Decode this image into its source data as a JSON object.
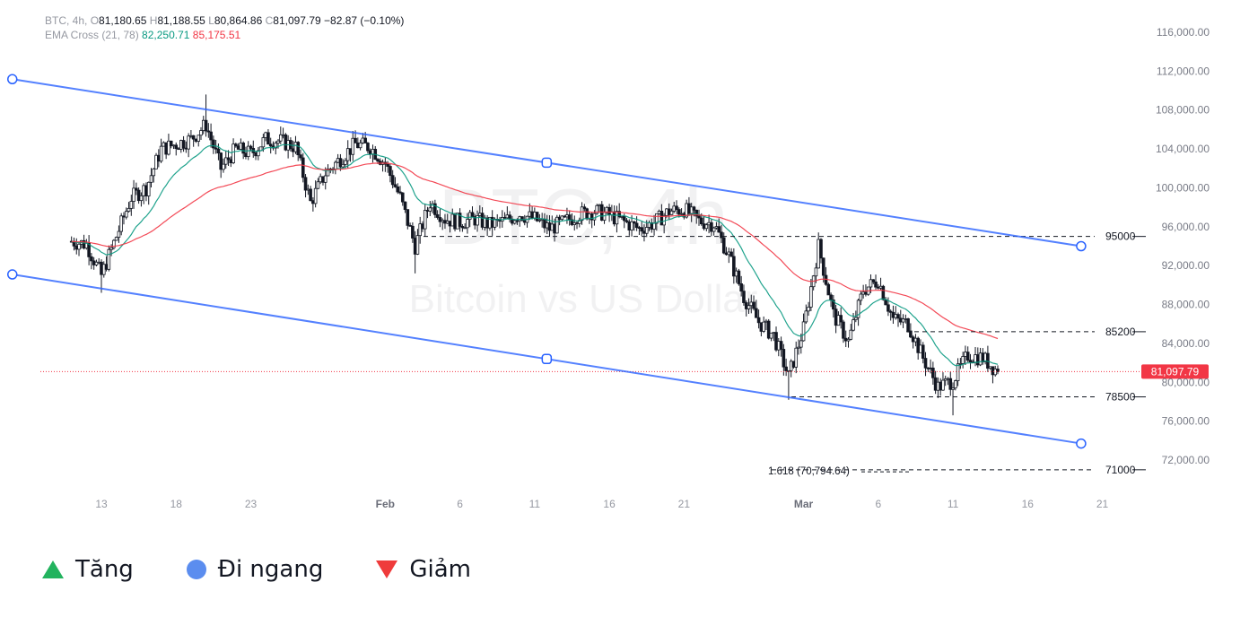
{
  "header": {
    "symbol": "BTC, 4h,",
    "open_label": "O",
    "open": "81,180.65",
    "high_label": "H",
    "high": "81,188.55",
    "low_label": "L",
    "low": "80,864.86",
    "close_label": "C",
    "close": "81,097.79",
    "change": "−82.87 (−0.10%)",
    "indicator_name": "EMA Cross (21, 78)",
    "ema21_value": "82,250.71",
    "ema78_value": "85,175.51"
  },
  "watermark": {
    "line1": "BTC, 4h",
    "line2": "Bitcoin vs US Dollar"
  },
  "chart_data": {
    "type": "candlestick",
    "title": "",
    "y_axis_ticks": [
      116000,
      112000,
      108000,
      104000,
      100000,
      96000,
      92000,
      88000,
      84000,
      80000,
      76000,
      72000
    ],
    "y_axis_tick_labels": [
      "116,000.00",
      "112,000.00",
      "108,000.00",
      "104,000.00",
      "100,000.00",
      "96,000.00",
      "92,000.00",
      "88,000.00",
      "84,000.00",
      "80,000.00",
      "76,000.00",
      "72,000.00"
    ],
    "ylim": [
      70000,
      117500
    ],
    "x_axis_labels": [
      "13",
      "18",
      "23",
      "Feb",
      "6",
      "11",
      "16",
      "21",
      "Mar",
      "6",
      "11",
      "16",
      "21"
    ],
    "x_axis_dates": [
      "2025-01-13",
      "2025-01-18",
      "2025-01-23",
      "2025-02-01",
      "2025-02-06",
      "2025-02-11",
      "2025-02-16",
      "2025-02-21",
      "2025-03-01",
      "2025-03-06",
      "2025-03-11",
      "2025-03-16",
      "2025-03-21"
    ],
    "price_path": [
      [
        "2025-01-11",
        94500
      ],
      [
        "2025-01-12",
        94200
      ],
      [
        "2025-01-13",
        91000
      ],
      [
        "2025-01-14",
        95000
      ],
      [
        "2025-01-15",
        99000
      ],
      [
        "2025-01-16",
        100000
      ],
      [
        "2025-01-17",
        104000
      ],
      [
        "2025-01-18",
        104500
      ],
      [
        "2025-01-19",
        105000
      ],
      [
        "2025-01-20",
        106500
      ],
      [
        "2025-01-21",
        102000
      ],
      [
        "2025-01-22",
        104000
      ],
      [
        "2025-01-23",
        103500
      ],
      [
        "2025-01-24",
        105000
      ],
      [
        "2025-01-25",
        104800
      ],
      [
        "2025-01-26",
        104200
      ],
      [
        "2025-01-27",
        98500
      ],
      [
        "2025-01-28",
        101500
      ],
      [
        "2025-01-29",
        103000
      ],
      [
        "2025-01-30",
        104500
      ],
      [
        "2025-01-31",
        104200
      ],
      [
        "2025-02-01",
        102500
      ],
      [
        "2025-02-02",
        99000
      ],
      [
        "2025-02-03",
        94000
      ],
      [
        "2025-02-04",
        98500
      ],
      [
        "2025-02-05",
        96800
      ],
      [
        "2025-02-06",
        96500
      ],
      [
        "2025-02-07",
        96800
      ],
      [
        "2025-02-08",
        96200
      ],
      [
        "2025-02-09",
        96600
      ],
      [
        "2025-02-10",
        97300
      ],
      [
        "2025-02-11",
        96800
      ],
      [
        "2025-02-12",
        95800
      ],
      [
        "2025-02-13",
        96500
      ],
      [
        "2025-02-14",
        97300
      ],
      [
        "2025-02-15",
        97600
      ],
      [
        "2025-02-16",
        97200
      ],
      [
        "2025-02-17",
        96500
      ],
      [
        "2025-02-18",
        95800
      ],
      [
        "2025-02-19",
        96400
      ],
      [
        "2025-02-20",
        97600
      ],
      [
        "2025-02-21",
        97800
      ],
      [
        "2025-02-22",
        96600
      ],
      [
        "2025-02-23",
        96300
      ],
      [
        "2025-02-24",
        93000
      ],
      [
        "2025-02-25",
        88800
      ],
      [
        "2025-02-26",
        86200
      ],
      [
        "2025-02-27",
        84800
      ],
      [
        "2025-02-28",
        80600
      ],
      [
        "2025-03-01",
        85500
      ],
      [
        "2025-03-02",
        94000
      ],
      [
        "2025-03-03",
        87000
      ],
      [
        "2025-03-04",
        84200
      ],
      [
        "2025-03-05",
        89500
      ],
      [
        "2025-03-06",
        90500
      ],
      [
        "2025-03-07",
        86500
      ],
      [
        "2025-03-08",
        86000
      ],
      [
        "2025-03-09",
        82500
      ],
      [
        "2025-03-10",
        79500
      ],
      [
        "2025-03-11",
        80200
      ],
      [
        "2025-03-12",
        82800
      ],
      [
        "2025-03-13",
        82500
      ],
      [
        "2025-03-14",
        81098
      ]
    ],
    "notable_extremes": {
      "high": [
        [
          "2025-01-20",
          109600
        ]
      ],
      "low": [
        [
          "2025-01-13",
          89200
        ],
        [
          "2025-02-03",
          91200
        ],
        [
          "2025-02-28",
          78200
        ],
        [
          "2025-03-11",
          76600
        ]
      ]
    },
    "series": [
      {
        "name": "EMA 21",
        "color": "#089981"
      },
      {
        "name": "EMA 78",
        "color": "#f23645"
      }
    ],
    "price_lines": [
      {
        "label": "95000",
        "value": 95000
      },
      {
        "label": "85200",
        "value": 85200
      },
      {
        "label": "78500",
        "value": 78500
      },
      {
        "label": "71000",
        "value": 71000
      }
    ],
    "fib_label": "1.618 (70,794.64)",
    "fib_value": 70794.64,
    "last_price": 81097.79,
    "last_price_label": "81,097.79",
    "channel": {
      "upper": [
        [
          "2025-01-08",
          110900
        ],
        [
          "2025-03-20",
          94000
        ]
      ],
      "lower": [
        [
          "2025-01-08",
          91000
        ],
        [
          "2025-03-20",
          73700
        ]
      ]
    }
  },
  "bottom_legend": [
    {
      "label": "Tăng",
      "icon": "triangle-up-icon",
      "color": "#22b35e"
    },
    {
      "label": "Đi ngang",
      "icon": "circle-icon",
      "color": "#5b8def"
    },
    {
      "label": "Giảm",
      "icon": "triangle-down-icon",
      "color": "#ef3b3b"
    }
  ]
}
